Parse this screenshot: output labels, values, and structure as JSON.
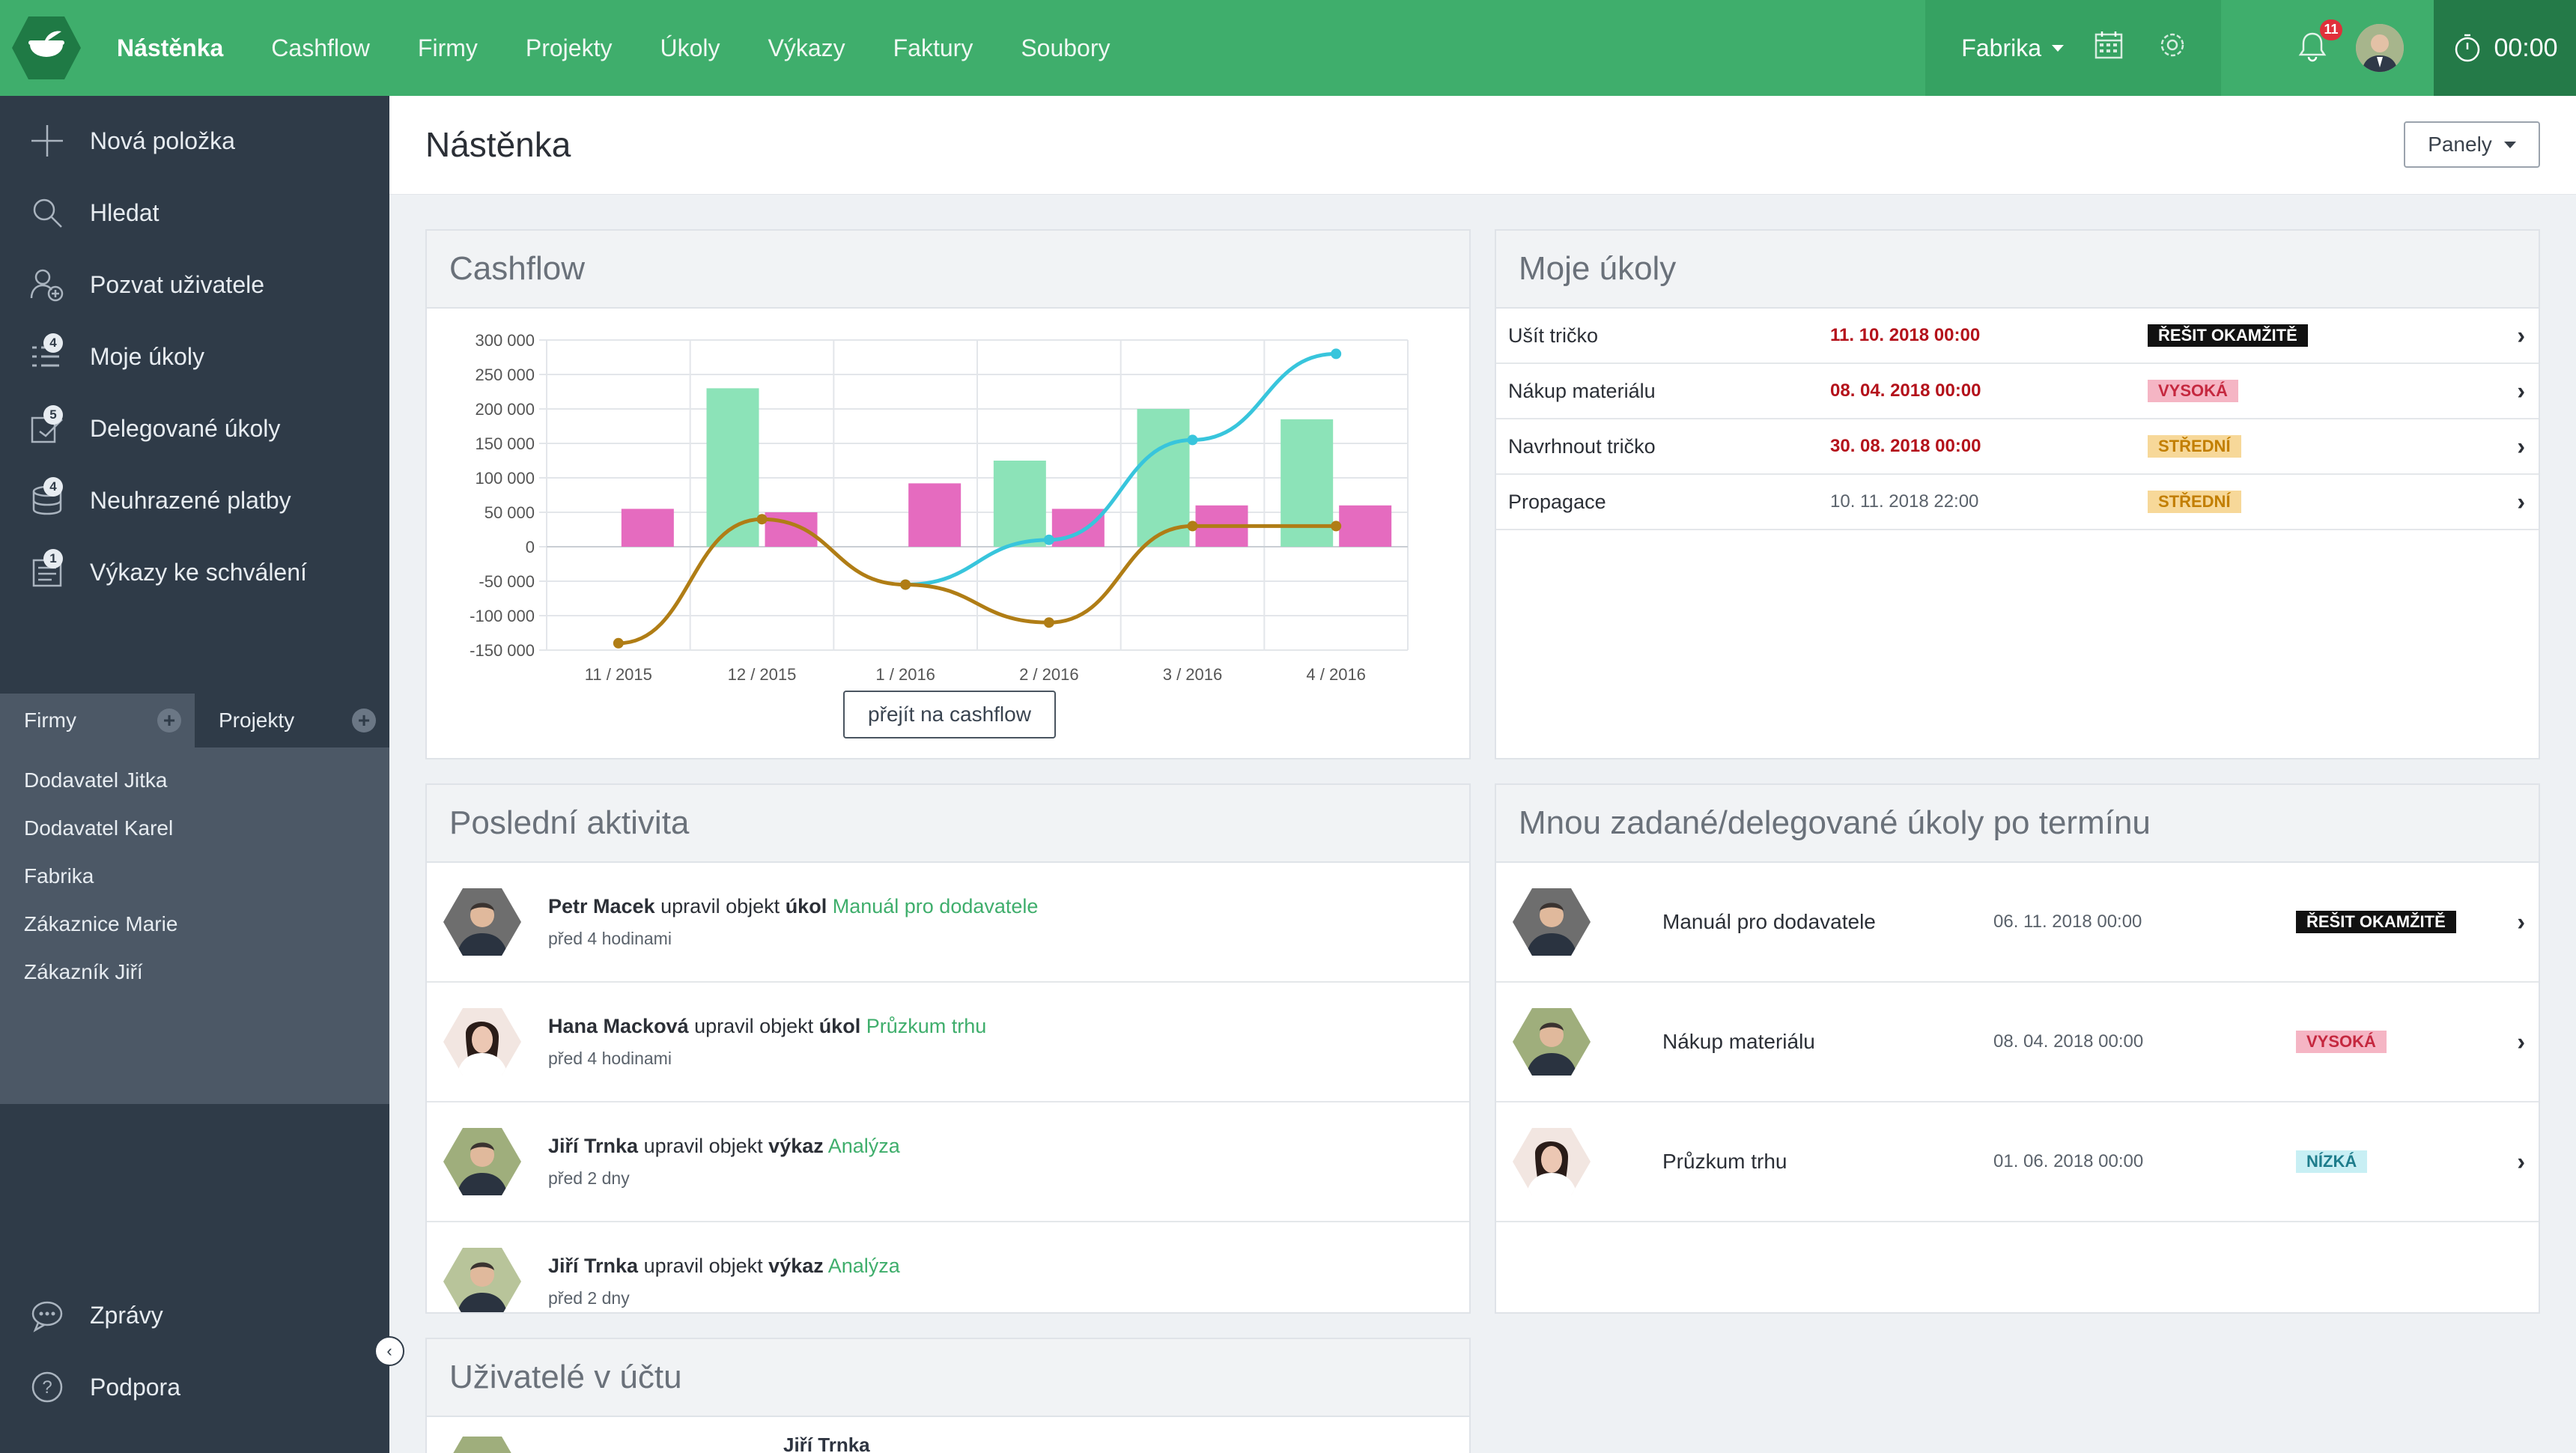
{
  "topbar": {
    "nav": [
      "Nástěnka",
      "Cashflow",
      "Firmy",
      "Projekty",
      "Úkoly",
      "Výkazy",
      "Faktury",
      "Soubory"
    ],
    "company": "Fabrika",
    "notifications": "11",
    "timer": "00:00",
    "colors": {
      "bar": "#3fae6c",
      "company": "#36a262",
      "timer": "#247a48"
    }
  },
  "sidebar": {
    "items": [
      {
        "label": "Nová položka",
        "icon": "plus-icon",
        "count": ""
      },
      {
        "label": "Hledat",
        "icon": "search-icon",
        "count": ""
      },
      {
        "label": "Pozvat uživatele",
        "icon": "invite-user-icon",
        "count": ""
      },
      {
        "label": "Moje úkoly",
        "icon": "task-list-icon",
        "count": "4"
      },
      {
        "label": "Delegované úkoly",
        "icon": "delegate-icon",
        "count": "5"
      },
      {
        "label": "Neuhrazené platby",
        "icon": "payments-icon",
        "count": "4"
      },
      {
        "label": "Výkazy ke schválení",
        "icon": "timesheet-icon",
        "count": "1"
      }
    ],
    "tabs": [
      "Firmy",
      "Projekty"
    ],
    "companies": [
      "Dodavatel Jitka",
      "Dodavatel Karel",
      "Fabrika",
      "Zákaznice Marie",
      "Zákazník Jiří"
    ],
    "bottom": [
      {
        "label": "Zprávy",
        "icon": "chat-icon"
      },
      {
        "label": "Podpora",
        "icon": "help-icon"
      }
    ]
  },
  "page": {
    "title": "Nástěnka",
    "panels_button": "Panely"
  },
  "cashflow": {
    "title": "Cashflow",
    "button": "přejít na cashflow"
  },
  "chart_data": {
    "type": "bar",
    "categories": [
      "11 / 2015",
      "12 / 2015",
      "1 / 2016",
      "2 / 2016",
      "3 / 2016",
      "4 / 2016"
    ],
    "ylim": [
      -150000,
      300000
    ],
    "yticks": [
      "300 000",
      "250 000",
      "200 000",
      "150 000",
      "100 000",
      "50 000",
      "0",
      "-50 000",
      "-100 000",
      "-150 000"
    ],
    "series": [
      {
        "kind": "bar",
        "color": "#8ce3b8",
        "values": [
          null,
          230000,
          null,
          125000,
          200000,
          185000
        ]
      },
      {
        "kind": "bar",
        "color": "#e56bbf",
        "values": [
          55000,
          50000,
          92000,
          55000,
          60000,
          60000
        ]
      },
      {
        "kind": "line",
        "color": "#38c5dc",
        "values": [
          null,
          null,
          -55000,
          10000,
          155000,
          280000
        ]
      },
      {
        "kind": "line",
        "color": "#b07d15",
        "values": [
          -140000,
          40000,
          -55000,
          -110000,
          30000,
          30000
        ]
      }
    ]
  },
  "my_tasks": {
    "title": "Moje úkoly",
    "rows": [
      {
        "name": "Ušít tričko",
        "date": "11. 10. 2018 00:00",
        "overdue": true,
        "priority": "ŘEŠIT OKAMŽITĚ",
        "style": "black"
      },
      {
        "name": "Nákup materiálu",
        "date": "08. 04. 2018 00:00",
        "overdue": true,
        "priority": "VYSOKÁ",
        "style": "pink"
      },
      {
        "name": "Navrhnout tričko",
        "date": "30. 08. 2018 00:00",
        "overdue": true,
        "priority": "STŘEDNÍ",
        "style": "yellow"
      },
      {
        "name": "Propagace",
        "date": "10. 11. 2018 22:00",
        "overdue": false,
        "priority": "STŘEDNÍ",
        "style": "yellow"
      }
    ]
  },
  "activity": {
    "title": "Poslední aktivita",
    "rows": [
      {
        "user": "Petr Macek",
        "verb": " upravil objekt ",
        "type": "úkol",
        "target": "Manuál pro dodavatele",
        "time": "před 4 hodinami",
        "avatar": "#6e6e6e"
      },
      {
        "user": "Hana Macková",
        "verb": " upravil objekt ",
        "type": "úkol",
        "target": "Průzkum trhu",
        "time": "před 4 hodinami",
        "avatar": "#f2e6e1"
      },
      {
        "user": "Jiří Trnka",
        "verb": " upravil objekt ",
        "type": "výkaz",
        "target": "Analýza",
        "time": "před 2 dny",
        "avatar": "#9fae7c"
      },
      {
        "user": "Jiří Trnka",
        "verb": " upravil objekt ",
        "type": "výkaz",
        "target": "Analýza",
        "time": "před 2 dny",
        "avatar": "#b8c49a"
      }
    ]
  },
  "delegated": {
    "title": "Mnou zadané/delegované úkoly po termínu",
    "rows": [
      {
        "name": "Manuál pro dodavatele",
        "date": "06. 11. 2018 00:00",
        "priority": "ŘEŠIT OKAMŽITĚ",
        "style": "black",
        "avatar": "#6e6e6e"
      },
      {
        "name": "Nákup materiálu",
        "date": "08. 04. 2018 00:00",
        "priority": "VYSOKÁ",
        "style": "pink",
        "avatar": "#9fae7c"
      },
      {
        "name": "Průzkum trhu",
        "date": "01. 06. 2018 00:00",
        "priority": "NÍZKÁ",
        "style": "cyan",
        "avatar": "#f2e6e1"
      }
    ]
  },
  "users": {
    "title": "Uživatelé v účtu",
    "first_user": "Jiří Trnka"
  }
}
